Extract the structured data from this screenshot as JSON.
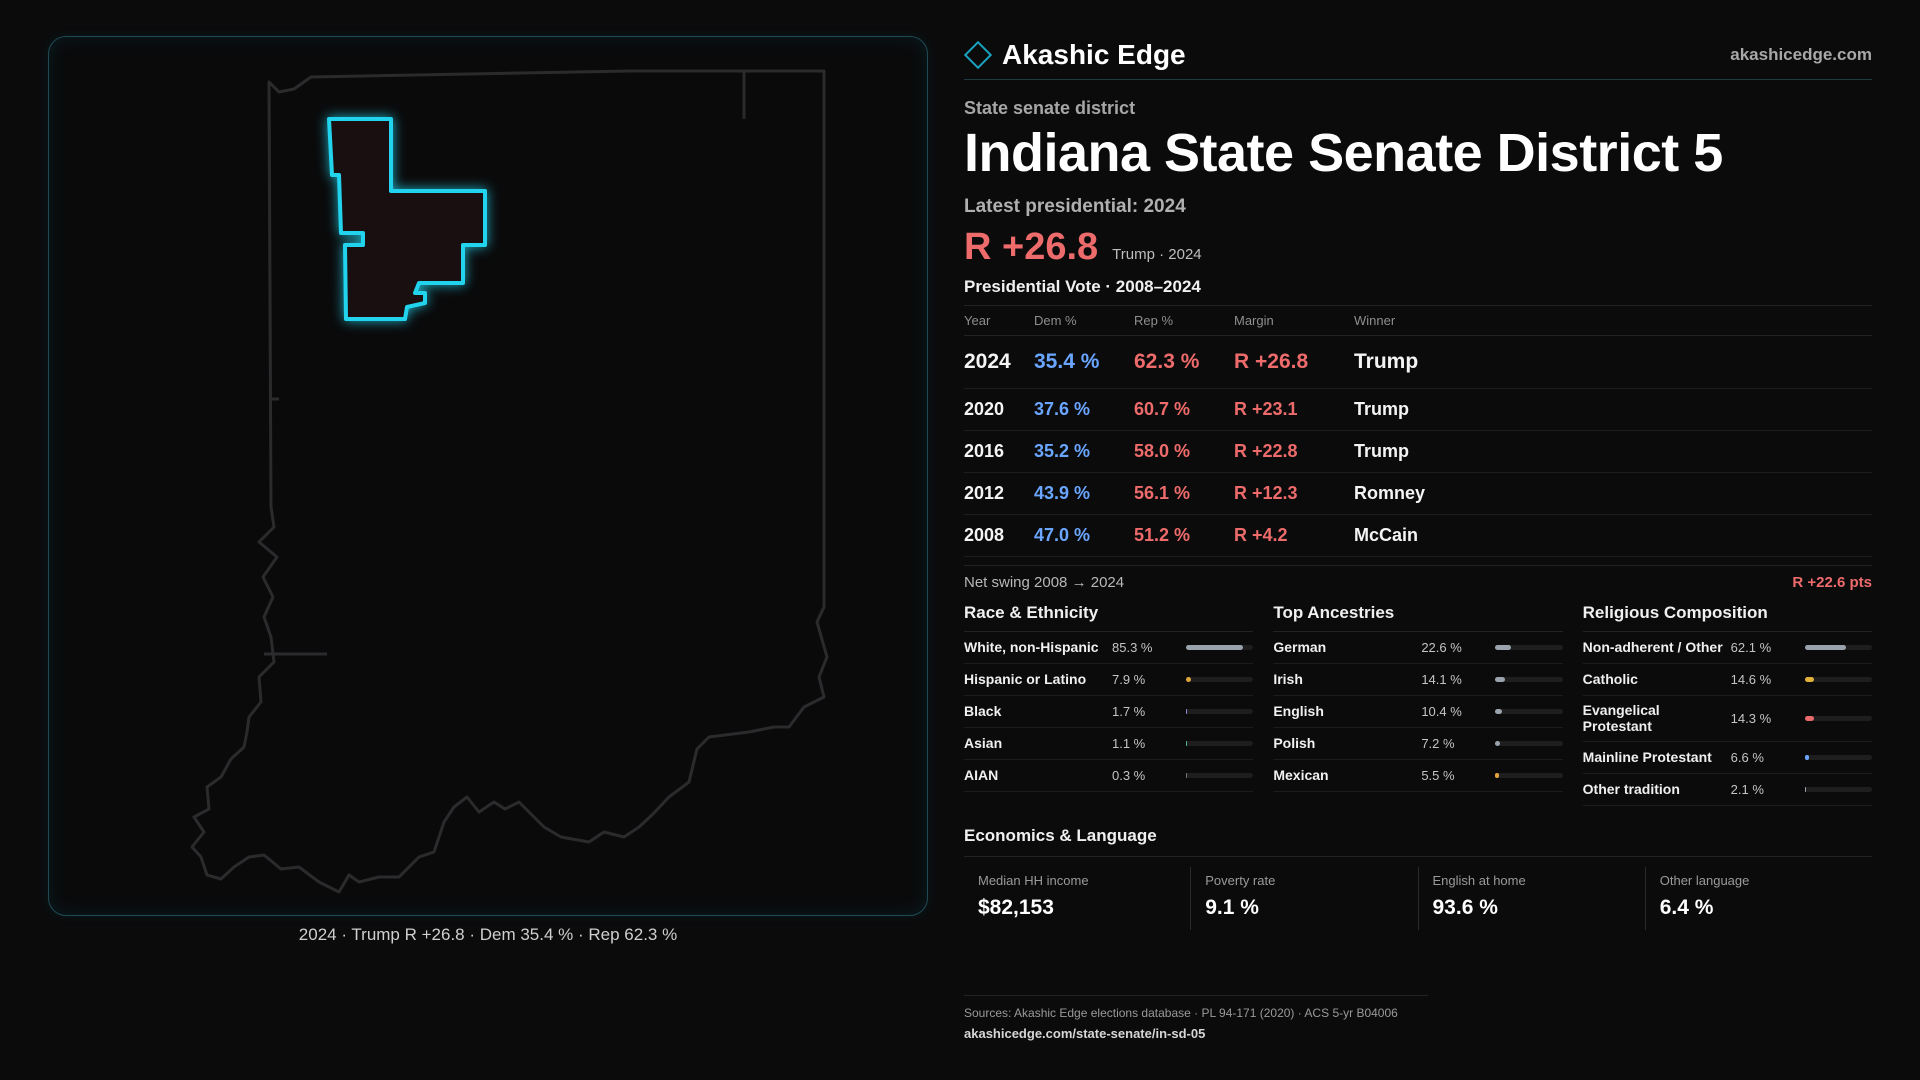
{
  "brand": {
    "name": "Akashic Edge",
    "site": "akashicedge.com",
    "icon": "diamond-icon"
  },
  "kicker": "State senate district",
  "title": "Indiana State Senate District 5",
  "latest_label": "Latest presidential: 2024",
  "headline_margin": "R +26.8",
  "headline_sub": "Trump · 2024",
  "vote_section_label": "Presidential Vote · 2008–2024",
  "vote_table": {
    "headers": [
      "Year",
      "Dem %",
      "Rep %",
      "Margin",
      "Winner"
    ],
    "rows": [
      {
        "year": "2024",
        "dem": "35.4 %",
        "rep": "62.3 %",
        "margin": "R +26.8",
        "winner": "Trump"
      },
      {
        "year": "2020",
        "dem": "37.6 %",
        "rep": "60.7 %",
        "margin": "R +23.1",
        "winner": "Trump"
      },
      {
        "year": "2016",
        "dem": "35.2 %",
        "rep": "58.0 %",
        "margin": "R +22.8",
        "winner": "Trump"
      },
      {
        "year": "2012",
        "dem": "43.9 %",
        "rep": "56.1 %",
        "margin": "R +12.3",
        "winner": "Romney"
      },
      {
        "year": "2008",
        "dem": "47.0 %",
        "rep": "51.2 %",
        "margin": "R +4.2",
        "winner": "McCain"
      }
    ]
  },
  "swing": {
    "label": "Net swing 2008 → 2024",
    "value": "R +22.6 pts"
  },
  "race": {
    "title": "Race & Ethnicity",
    "items": [
      {
        "label": "White, non-Hispanic",
        "value": "85.3 %",
        "share": 0.853,
        "color": "#9aa3ad"
      },
      {
        "label": "Hispanic or Latino",
        "value": "7.9 %",
        "share": 0.079,
        "color": "#e0a63a"
      },
      {
        "label": "Black",
        "value": "1.7 %",
        "share": 0.017,
        "color": "#8a8fd0"
      },
      {
        "label": "Asian",
        "value": "1.1 %",
        "share": 0.011,
        "color": "#4fb38a"
      },
      {
        "label": "AIAN",
        "value": "0.3 %",
        "share": 0.003,
        "color": "#777777"
      }
    ]
  },
  "ancestry": {
    "title": "Top Ancestries",
    "items": [
      {
        "label": "German",
        "value": "22.6 %",
        "share": 0.226,
        "color": "#9aa3ad"
      },
      {
        "label": "Irish",
        "value": "14.1 %",
        "share": 0.141,
        "color": "#9aa3ad"
      },
      {
        "label": "English",
        "value": "10.4 %",
        "share": 0.104,
        "color": "#9aa3ad"
      },
      {
        "label": "Polish",
        "value": "7.2 %",
        "share": 0.072,
        "color": "#9aa3ad"
      },
      {
        "label": "Mexican",
        "value": "5.5 %",
        "share": 0.055,
        "color": "#e0a63a"
      }
    ]
  },
  "religion": {
    "title": "Religious Composition",
    "items": [
      {
        "label": "Non-adherent / Other",
        "value": "62.1 %",
        "share": 0.621,
        "color": "#9aa3ad"
      },
      {
        "label": "Catholic",
        "value": "14.6 %",
        "share": 0.146,
        "color": "#e0b23a"
      },
      {
        "label": "Evangelical Protestant",
        "value": "14.3 %",
        "share": 0.143,
        "color": "#e86a6a"
      },
      {
        "label": "Mainline Protestant",
        "value": "6.6 %",
        "share": 0.066,
        "color": "#6aa6ff"
      },
      {
        "label": "Other tradition",
        "value": "2.1 %",
        "share": 0.021,
        "color": "#9aa3ad"
      }
    ]
  },
  "economics": {
    "title": "Economics & Language",
    "cards": [
      {
        "label": "Median HH income",
        "value": "$82,153"
      },
      {
        "label": "Poverty rate",
        "value": "9.1 %"
      },
      {
        "label": "English at home",
        "value": "93.6 %"
      },
      {
        "label": "Other language",
        "value": "6.4 %"
      }
    ]
  },
  "map_caption": "2024 · Trump R +26.8 · Dem 35.4 % · Rep 62.3 %",
  "sources": {
    "line1": "Sources: Akashic Edge elections database · PL 94-171 (2020) · ACS 5-yr B04006",
    "line2": "akashicedge.com/state-senate/in-sd-05"
  },
  "colors": {
    "dem": "#6aa6ff",
    "rep": "#ee6b6b",
    "district_outline": "#22d3ee"
  }
}
